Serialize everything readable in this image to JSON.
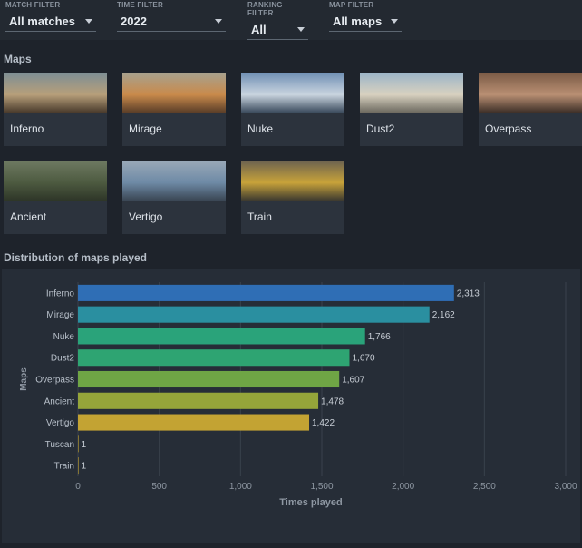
{
  "filters": [
    {
      "label": "MATCH FILTER",
      "value": "All matches"
    },
    {
      "label": "TIME FILTER",
      "value": "2022"
    },
    {
      "label": "RANKING FILTER",
      "value": "All"
    },
    {
      "label": "MAP FILTER",
      "value": "All maps"
    }
  ],
  "maps_section": {
    "title": "Maps",
    "maps": [
      {
        "name": "Inferno",
        "colors": [
          "#7d8e95",
          "#b79f7a",
          "#4a3b2c"
        ]
      },
      {
        "name": "Mirage",
        "colors": [
          "#a7a28f",
          "#c98a4b",
          "#5b3e28"
        ]
      },
      {
        "name": "Nuke",
        "colors": [
          "#6f8fb4",
          "#c9d4df",
          "#3b4b5d"
        ]
      },
      {
        "name": "Dust2",
        "colors": [
          "#9bb4c8",
          "#d8d1c0",
          "#6d6a60"
        ]
      },
      {
        "name": "Overpass",
        "colors": [
          "#7a5a45",
          "#b98f73",
          "#3e3028"
        ]
      },
      {
        "name": "Ancient",
        "colors": [
          "#6e7a62",
          "#4d5a40",
          "#2e3628"
        ]
      },
      {
        "name": "Vertigo",
        "colors": [
          "#9aa9b8",
          "#6e8aa6",
          "#3a4654"
        ]
      },
      {
        "name": "Train",
        "colors": [
          "#6b6250",
          "#c8a33a",
          "#3c3a30"
        ]
      }
    ]
  },
  "distribution": {
    "title": "Distribution of maps played"
  },
  "chart_data": {
    "type": "bar",
    "orientation": "horizontal",
    "xlabel": "Times played",
    "ylabel": "Maps",
    "xlim": [
      0,
      3000
    ],
    "xticks": [
      0,
      500,
      1000,
      1500,
      2000,
      2500,
      3000
    ],
    "xtick_labels": [
      "0",
      "500",
      "1,000",
      "1,500",
      "2,000",
      "2,500",
      "3,000"
    ],
    "grid": true,
    "categories": [
      "Inferno",
      "Mirage",
      "Nuke",
      "Dust2",
      "Overpass",
      "Ancient",
      "Vertigo",
      "Tuscan",
      "Train"
    ],
    "values": [
      2313,
      2162,
      1766,
      1670,
      1607,
      1478,
      1422,
      1,
      1
    ],
    "value_labels": [
      "2,313",
      "2,162",
      "1,766",
      "1,670",
      "1,607",
      "1,478",
      "1,422",
      "1",
      "1"
    ],
    "colors": [
      "#2f6eb5",
      "#2a8fa0",
      "#2aa37a",
      "#2ea472",
      "#6fa545",
      "#95a53a",
      "#c3a333",
      "#c3a333",
      "#c3a333"
    ]
  }
}
